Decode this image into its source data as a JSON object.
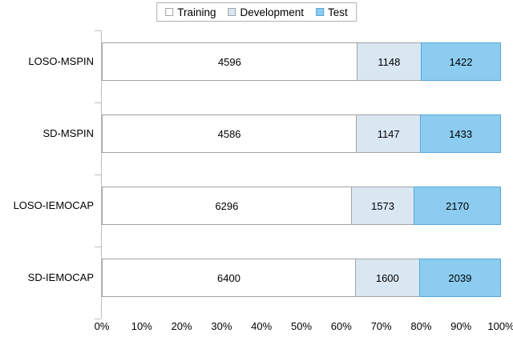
{
  "legend": {
    "items": [
      {
        "label": "Training"
      },
      {
        "label": "Development"
      },
      {
        "label": "Test"
      }
    ]
  },
  "series_styles": [
    {
      "name": "Training",
      "fill": "#ffffff",
      "border": "#a3a3a3"
    },
    {
      "name": "Development",
      "fill": "#d9e7f3",
      "border": "#a3a3a3"
    },
    {
      "name": "Test",
      "fill": "#8cccf0",
      "border": "#54a7da"
    }
  ],
  "axis_color": "#bfbfbf",
  "chart_data": {
    "type": "bar",
    "subtype": "horizontal-100pct-stacked",
    "title": "",
    "xlabel": "",
    "ylabel": "",
    "grid": false,
    "legend_position": "top",
    "xlim": [
      0,
      100
    ],
    "x_ticks": [
      "0%",
      "10%",
      "20%",
      "30%",
      "40%",
      "50%",
      "60%",
      "70%",
      "80%",
      "90%",
      "100%"
    ],
    "categories": [
      "LOSO-MSPIN",
      "SD-MSPIN",
      "LOSO-IEMOCAP",
      "SD-IEMOCAP"
    ],
    "series": [
      {
        "name": "Training",
        "values": [
          4596,
          4586,
          6296,
          6400
        ]
      },
      {
        "name": "Development",
        "values": [
          1148,
          1147,
          1573,
          1600
        ]
      },
      {
        "name": "Test",
        "values": [
          1422,
          1433,
          2170,
          2039
        ]
      }
    ],
    "rows": [
      {
        "category": "LOSO-MSPIN",
        "values": [
          4596,
          1148,
          1422
        ]
      },
      {
        "category": "SD-MSPIN",
        "values": [
          4586,
          1147,
          1433
        ]
      },
      {
        "category": "LOSO-IEMOCAP",
        "values": [
          6296,
          1573,
          2170
        ]
      },
      {
        "category": "SD-IEMOCAP",
        "values": [
          6400,
          1600,
          2039
        ]
      }
    ]
  }
}
